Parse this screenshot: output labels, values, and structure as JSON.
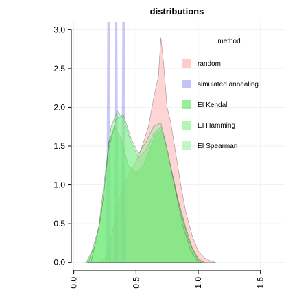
{
  "chart_data": {
    "type": "area",
    "title": "distributions",
    "xlabel": "",
    "ylabel": "",
    "xlim": [
      -0.02,
      1.7
    ],
    "ylim": [
      -0.1,
      3.1
    ],
    "x_ticks": [
      "0.0",
      "0.5",
      "1.0",
      "1.5"
    ],
    "x_tick_values": [
      0.0,
      0.5,
      1.0,
      1.5
    ],
    "y_ticks": [
      "0.0",
      "0.5",
      "1.0",
      "1.5",
      "2.0",
      "2.5",
      "3.0"
    ],
    "y_tick_values": [
      0.0,
      0.5,
      1.0,
      1.5,
      2.0,
      2.5,
      3.0
    ],
    "grid": true,
    "legend": {
      "title": "method",
      "placement": "top-right",
      "entries": [
        "random",
        "simulated annealing",
        "EI Kendall",
        "EI Hamming",
        "EI Spearman"
      ]
    },
    "series": [
      {
        "name": "random",
        "color": "#ff9999",
        "x": [
          0.2,
          0.25,
          0.3,
          0.35,
          0.4,
          0.45,
          0.5,
          0.55,
          0.6,
          0.64,
          0.68,
          0.7,
          0.72,
          0.75,
          0.78,
          0.8,
          0.83,
          0.86,
          0.9,
          0.95,
          1.0,
          1.05,
          1.1,
          1.14
        ],
        "y": [
          0.0,
          0.05,
          0.3,
          0.7,
          1.0,
          1.15,
          1.3,
          1.5,
          1.75,
          2.1,
          2.4,
          2.9,
          2.6,
          2.0,
          1.8,
          1.6,
          1.3,
          1.0,
          0.65,
          0.35,
          0.15,
          0.06,
          0.02,
          0.0
        ]
      },
      {
        "name": "simulated annealing",
        "color": "#8888ee",
        "x": [
          0.26,
          0.27,
          0.28,
          0.29,
          0.3,
          0.32,
          0.33,
          0.34,
          0.35,
          0.36,
          0.38,
          0.39,
          0.4,
          0.41,
          0.42,
          0.44
        ],
        "y": [
          0.0,
          3.1,
          3.1,
          3.1,
          0.0,
          0.0,
          3.1,
          3.1,
          3.1,
          0.0,
          0.0,
          3.1,
          3.1,
          3.1,
          0.0,
          0.0
        ]
      },
      {
        "name": "EI Kendall",
        "color": "#33dd33",
        "x": [
          0.1,
          0.18,
          0.24,
          0.28,
          0.33,
          0.38,
          0.44,
          0.5,
          0.56,
          0.62,
          0.66,
          0.7,
          0.73,
          0.76,
          0.8,
          0.84,
          0.9,
          0.95,
          1.0,
          1.05
        ],
        "y": [
          0.0,
          0.25,
          0.85,
          1.55,
          1.75,
          1.6,
          1.25,
          1.15,
          1.25,
          1.5,
          1.65,
          1.7,
          1.6,
          1.35,
          1.1,
          0.8,
          0.45,
          0.2,
          0.05,
          0.0
        ]
      },
      {
        "name": "EI Hamming",
        "color": "#66ee66",
        "x": [
          0.12,
          0.2,
          0.26,
          0.3,
          0.35,
          0.4,
          0.46,
          0.52,
          0.58,
          0.64,
          0.7,
          0.75,
          0.8,
          0.86,
          0.92,
          0.98,
          1.02
        ],
        "y": [
          0.0,
          0.45,
          1.25,
          1.75,
          1.95,
          1.85,
          1.55,
          1.35,
          1.45,
          1.65,
          1.75,
          1.45,
          1.05,
          0.65,
          0.3,
          0.08,
          0.0
        ]
      },
      {
        "name": "EI Spearman",
        "color": "#88ee99",
        "x": [
          0.14,
          0.22,
          0.28,
          0.34,
          0.4,
          0.46,
          0.52,
          0.58,
          0.64,
          0.7,
          0.76,
          0.82,
          0.88,
          0.94,
          1.0
        ],
        "y": [
          0.0,
          0.6,
          1.45,
          1.85,
          1.9,
          1.6,
          1.4,
          1.55,
          1.75,
          1.8,
          1.4,
          0.9,
          0.45,
          0.15,
          0.0
        ]
      }
    ]
  }
}
